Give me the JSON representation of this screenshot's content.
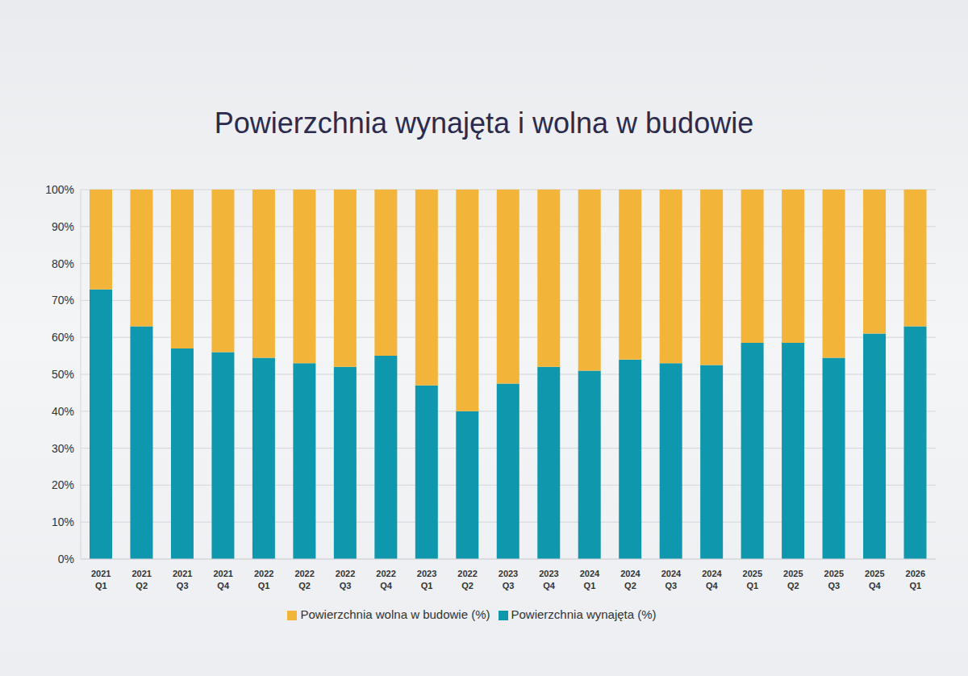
{
  "chart_data": {
    "type": "bar",
    "title": "Powierzchnia wynajęta i wolna w budowie",
    "categories": [
      "2021 Q1",
      "2021 Q2",
      "2021 Q3",
      "2021 Q4",
      "2022 Q1",
      "2022 Q2",
      "2022 Q3",
      "2022 Q4",
      "2023 Q1",
      "2022 Q2",
      "2023 Q3",
      "2023 Q4",
      "2024 Q1",
      "2024 Q2",
      "2024 Q3",
      "2024 Q4",
      "2025 Q1",
      "2025 Q2",
      "2025 Q3",
      "2025 Q4",
      "2026 Q1"
    ],
    "series": [
      {
        "name": "Powierzchnia wynajęta (%)",
        "color": "#0e97ad",
        "values": [
          73,
          63,
          57,
          56,
          54.5,
          53,
          52,
          55,
          47,
          40,
          47.5,
          52,
          51,
          54,
          53,
          52.5,
          58.5,
          58.5,
          54.5,
          61,
          63
        ]
      },
      {
        "name": "Powierzchnia wolna w budowie (%)",
        "color": "#f2b53a",
        "values": [
          27,
          37,
          43,
          44,
          45.5,
          47,
          48,
          45,
          53,
          60,
          52.5,
          48,
          49,
          46,
          47,
          47.5,
          41.5,
          41.5,
          45.5,
          39,
          37
        ]
      }
    ],
    "stacked": true,
    "ylim": [
      0,
      100
    ],
    "yticks": [
      {
        "value": 0,
        "label": "0%"
      },
      {
        "value": 10,
        "label": "10%"
      },
      {
        "value": 20,
        "label": "20%"
      },
      {
        "value": 30,
        "label": "30%"
      },
      {
        "value": 40,
        "label": "40%"
      },
      {
        "value": 50,
        "label": "50%"
      },
      {
        "value": 60,
        "label": "60%"
      },
      {
        "value": 70,
        "label": "70%"
      },
      {
        "value": 80,
        "label": "80%"
      },
      {
        "value": 90,
        "label": "90%"
      },
      {
        "value": 100,
        "label": "100%"
      }
    ],
    "grid": true,
    "legend": "bottom"
  }
}
